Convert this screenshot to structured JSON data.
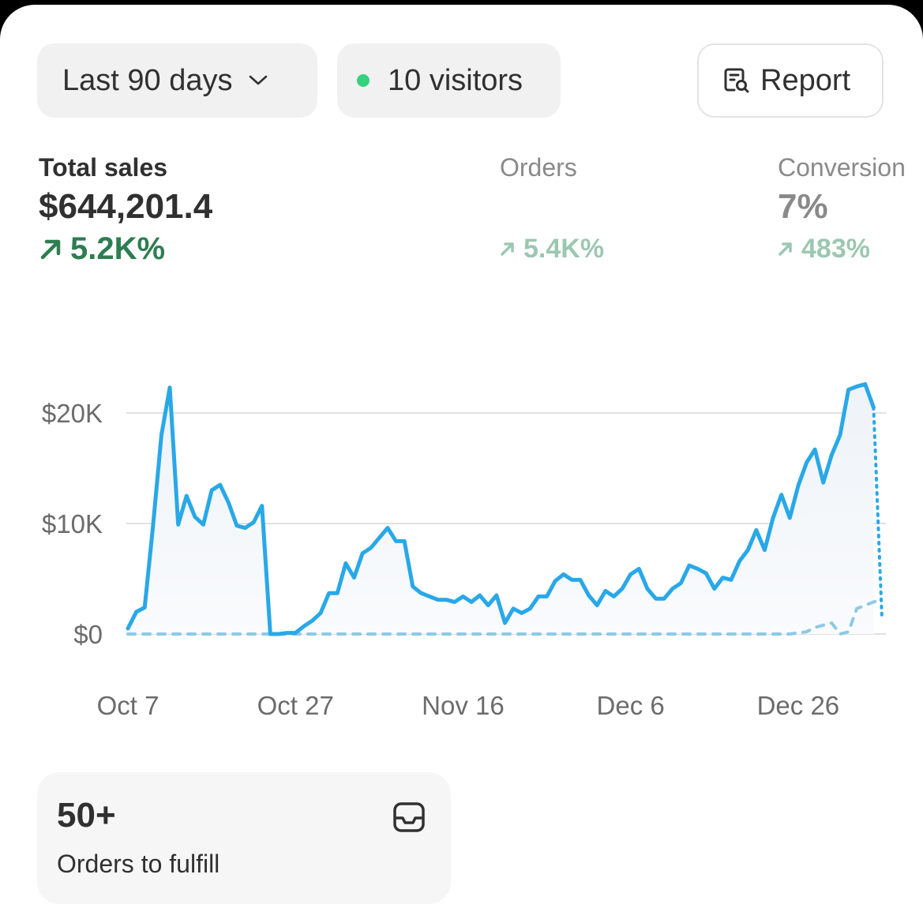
{
  "toolbar": {
    "date_range": "Last 90 days",
    "visitors": "10 visitors",
    "report": "Report"
  },
  "metrics": [
    {
      "label": "Total sales",
      "value": "$644,201.4",
      "change": "5.2K%"
    },
    {
      "label": "Orders",
      "change": "5.4K%"
    },
    {
      "label": "Conversion",
      "value": "7%",
      "change": "483%"
    }
  ],
  "chart_data": {
    "type": "line",
    "categories": [
      "Oct 7",
      null,
      null,
      null,
      null,
      null,
      null,
      null,
      null,
      null,
      null,
      null,
      null,
      null,
      null,
      null,
      null,
      null,
      null,
      null,
      "Oct 27",
      null,
      null,
      null,
      null,
      null,
      null,
      null,
      null,
      null,
      null,
      null,
      null,
      null,
      null,
      null,
      null,
      null,
      null,
      null,
      "Nov 16",
      null,
      null,
      null,
      null,
      null,
      null,
      null,
      null,
      null,
      null,
      null,
      null,
      null,
      null,
      null,
      null,
      null,
      null,
      null,
      "Dec 6",
      null,
      null,
      null,
      null,
      null,
      null,
      null,
      null,
      null,
      null,
      null,
      null,
      null,
      null,
      null,
      null,
      null,
      null,
      null,
      "Dec 26",
      null,
      null,
      null,
      null,
      null,
      null,
      null,
      null,
      null,
      null
    ],
    "series": [
      {
        "color": "#29a8e8",
        "values": [
          500,
          2000,
          2400,
          9800,
          18000,
          22300,
          9900,
          12500,
          10600,
          9900,
          13000,
          13500,
          11900,
          9800,
          9600,
          10100,
          11600,
          0,
          0,
          100,
          100,
          700,
          1200,
          1900,
          3700,
          3700,
          6400,
          5100,
          7300,
          7800,
          8700,
          9600,
          8400,
          8400,
          4300,
          3700,
          3400,
          3100,
          3100,
          2900,
          3400,
          2900,
          3500,
          2600,
          3500,
          1000,
          2300,
          1900,
          2300,
          3400,
          3400,
          4800,
          5400,
          4900,
          4900,
          3500,
          2600,
          3900,
          3400,
          4100,
          5400,
          5900,
          4100,
          3200,
          3200,
          4100,
          4600,
          6200,
          5900,
          5500,
          4100,
          5100,
          4900,
          6600,
          7600,
          9400,
          7600,
          10500,
          12600,
          10500,
          13400,
          15500,
          16700,
          13700,
          16200,
          18000,
          22100,
          22400,
          22600,
          20500,
          1400
        ]
      },
      {
        "color": "#8ec9e6",
        "values": [
          0,
          0,
          0,
          0,
          0,
          0,
          0,
          0,
          0,
          0,
          0,
          0,
          0,
          0,
          0,
          0,
          0,
          0,
          0,
          0,
          0,
          0,
          0,
          0,
          0,
          0,
          0,
          0,
          0,
          0,
          0,
          0,
          0,
          0,
          0,
          0,
          0,
          0,
          0,
          0,
          0,
          0,
          0,
          0,
          0,
          0,
          0,
          0,
          0,
          0,
          0,
          0,
          0,
          0,
          0,
          0,
          0,
          0,
          0,
          0,
          0,
          0,
          0,
          0,
          0,
          0,
          0,
          0,
          0,
          0,
          0,
          0,
          0,
          0,
          0,
          0,
          0,
          0,
          0,
          0,
          100,
          200,
          600,
          800,
          1000,
          0,
          200,
          2300,
          2600,
          2900,
          3100
        ]
      }
    ],
    "ylim": [
      0,
      23000
    ],
    "yticks": [
      {
        "value": 0,
        "label": "$0"
      },
      {
        "value": 10000,
        "label": "$10K"
      },
      {
        "value": 20000,
        "label": "$20K"
      }
    ],
    "grid": true
  },
  "card": {
    "value": "50+",
    "label": "Orders to fulfill"
  }
}
